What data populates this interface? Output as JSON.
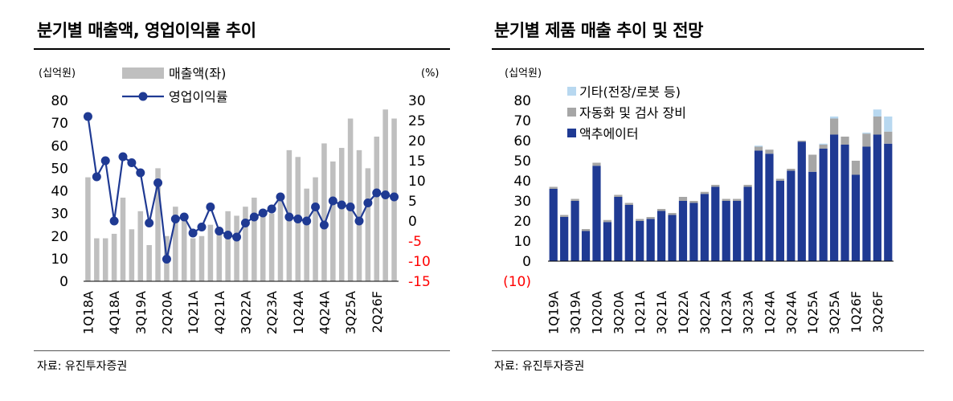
{
  "left_panel": {
    "title": "분기별 매출액, 영업이익률 추이",
    "source": "자료: 유진투자증권"
  },
  "right_panel": {
    "title": "분기별 제품 매출 추이 및 전망",
    "source": "자료: 유진투자증권"
  },
  "colors": {
    "revenue_bar": "#bfbfbf",
    "margin_line": "#1f3a93",
    "negative_tick": "#ff0000",
    "actuator": "#1f3a93",
    "automation": "#a6a6a6",
    "other": "#b8d8f0"
  },
  "chart_data": [
    {
      "type": "bar",
      "combo": "bar+line",
      "left_unit": "(십억원)",
      "right_unit": "(%)",
      "ylim": [
        0,
        80
      ],
      "ylim_right": [
        -15,
        30
      ],
      "yticks": [
        0,
        10,
        20,
        30,
        40,
        50,
        60,
        70,
        80
      ],
      "yticks_right": [
        -15,
        -10,
        -5,
        0,
        5,
        10,
        15,
        20,
        25,
        30
      ],
      "category_labels": [
        "1Q18A",
        "4Q18A",
        "3Q19A",
        "2Q20A",
        "1Q21A",
        "4Q21A",
        "3Q22A",
        "2Q23A",
        "1Q24A",
        "4Q24A",
        "3Q25A",
        "2Q26F"
      ],
      "label_every": 3,
      "num_categories": 36,
      "series": [
        {
          "name": "매출액(좌)",
          "axis": "left",
          "kind": "bar",
          "values": [
            46,
            19,
            19,
            21,
            37,
            23,
            31,
            16,
            50,
            20,
            33,
            29,
            19,
            20,
            25,
            22,
            31,
            29,
            33,
            37,
            30,
            30,
            37,
            58,
            55,
            41,
            46,
            61,
            53,
            59,
            72,
            58,
            50,
            64,
            76,
            72
          ]
        },
        {
          "name": "영업이익률",
          "axis": "right",
          "kind": "line",
          "values": [
            26,
            11,
            15,
            0,
            16,
            14.5,
            12,
            -0.5,
            9.5,
            -9.5,
            0.5,
            1,
            -3,
            -1.5,
            3.5,
            -2.5,
            -3.5,
            -4,
            -0.5,
            1,
            2,
            3,
            6,
            1,
            0.5,
            0,
            3.5,
            -1,
            5,
            4,
            3.5,
            0,
            4.5,
            7,
            6.5,
            6
          ]
        }
      ]
    },
    {
      "type": "bar",
      "stacked": true,
      "unit": "(십억원)",
      "ylim": [
        -10,
        80
      ],
      "yticks": [
        80,
        70,
        60,
        50,
        40,
        30,
        20,
        10,
        0
      ],
      "negative_tick_label": "(10)",
      "category_labels": [
        "1Q19A",
        "3Q19A",
        "1Q20A",
        "3Q20A",
        "1Q21A",
        "3Q21A",
        "1Q22A",
        "3Q22A",
        "1Q23A",
        "3Q23A",
        "1Q24A",
        "3Q24A",
        "1Q25A",
        "3Q25A",
        "1Q26F",
        "3Q26F"
      ],
      "label_every": 2,
      "num_categories": 32,
      "series": [
        {
          "name": "액추에이터",
          "values": [
            36,
            22,
            30,
            15,
            47.5,
            19.5,
            32,
            28,
            20,
            21,
            25,
            23,
            30,
            29,
            33.5,
            37,
            30,
            30,
            37,
            55,
            53.5,
            40,
            45,
            59.5,
            44.5,
            56,
            63,
            58,
            43,
            57,
            63,
            58.5
          ]
        },
        {
          "name": "자동화 및 검사 장비",
          "values": [
            1,
            1,
            1,
            1,
            1.5,
            1,
            1,
            1,
            1,
            1,
            1,
            1,
            2,
            1,
            1,
            1,
            1,
            1,
            1,
            2,
            2,
            1,
            1,
            0.5,
            8.5,
            2,
            8,
            4,
            7,
            6.5,
            9,
            6
          ]
        },
        {
          "name": "기타(전장/로봇 등)",
          "values": [
            0,
            0,
            0,
            0,
            0,
            0,
            0,
            0,
            0,
            0,
            0,
            0,
            0,
            0,
            0,
            0,
            0,
            0,
            0,
            0.5,
            0,
            0,
            0,
            0,
            0,
            0.5,
            1,
            0,
            0,
            0.5,
            3.5,
            7.5
          ]
        }
      ]
    }
  ]
}
